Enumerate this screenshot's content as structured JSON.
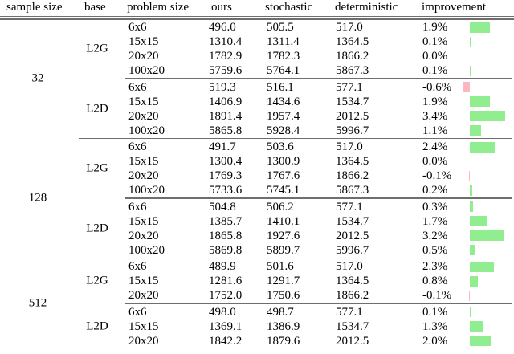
{
  "table": {
    "columns": [
      "sample size",
      "base",
      "problem size",
      "ours",
      "stochastic",
      "deterministic",
      "improvement"
    ],
    "colors": {
      "positive_bar": "#90ee90",
      "negative_bar": "#ffb6c1",
      "rule": "#6e6e6e"
    },
    "sample_groups": [
      {
        "sample_size": "32",
        "base_groups": [
          {
            "base": "L2G",
            "rows": [
              {
                "problem_size": "6x6",
                "ours": "496.0",
                "stochastic": "505.5",
                "deterministic": "517.0",
                "improvement": "1.9%",
                "improvement_value": 1.9
              },
              {
                "problem_size": "15x15",
                "ours": "1310.4",
                "stochastic": "1311.4",
                "deterministic": "1364.5",
                "improvement": "0.1%",
                "improvement_value": 0.1
              },
              {
                "problem_size": "20x20",
                "ours": "1782.9",
                "stochastic": "1782.3",
                "deterministic": "1866.2",
                "improvement": "0.0%",
                "improvement_value": 0.0
              },
              {
                "problem_size": "100x20",
                "ours": "5759.6",
                "stochastic": "5764.1",
                "deterministic": "5867.3",
                "improvement": "0.1%",
                "improvement_value": 0.1
              }
            ]
          },
          {
            "base": "L2D",
            "rows": [
              {
                "problem_size": "6x6",
                "ours": "519.3",
                "stochastic": "516.1",
                "deterministic": "577.1",
                "improvement": "-0.6%",
                "improvement_value": -0.6
              },
              {
                "problem_size": "15x15",
                "ours": "1406.9",
                "stochastic": "1434.6",
                "deterministic": "1534.7",
                "improvement": "1.9%",
                "improvement_value": 1.9
              },
              {
                "problem_size": "20x20",
                "ours": "1891.4",
                "stochastic": "1957.4",
                "deterministic": "2012.5",
                "improvement": "3.4%",
                "improvement_value": 3.4
              },
              {
                "problem_size": "100x20",
                "ours": "5865.8",
                "stochastic": "5928.4",
                "deterministic": "5996.7",
                "improvement": "1.1%",
                "improvement_value": 1.1
              }
            ]
          }
        ]
      },
      {
        "sample_size": "128",
        "base_groups": [
          {
            "base": "L2G",
            "rows": [
              {
                "problem_size": "6x6",
                "ours": "491.7",
                "stochastic": "503.6",
                "deterministic": "517.0",
                "improvement": "2.4%",
                "improvement_value": 2.4
              },
              {
                "problem_size": "15x15",
                "ours": "1300.4",
                "stochastic": "1300.9",
                "deterministic": "1364.5",
                "improvement": "0.0%",
                "improvement_value": 0.0
              },
              {
                "problem_size": "20x20",
                "ours": "1769.3",
                "stochastic": "1767.6",
                "deterministic": "1866.2",
                "improvement": "-0.1%",
                "improvement_value": -0.1
              },
              {
                "problem_size": "100x20",
                "ours": "5733.6",
                "stochastic": "5745.1",
                "deterministic": "5867.3",
                "improvement": "0.2%",
                "improvement_value": 0.2
              }
            ]
          },
          {
            "base": "L2D",
            "rows": [
              {
                "problem_size": "6x6",
                "ours": "504.8",
                "stochastic": "506.2",
                "deterministic": "577.1",
                "improvement": "0.3%",
                "improvement_value": 0.3
              },
              {
                "problem_size": "15x15",
                "ours": "1385.7",
                "stochastic": "1410.1",
                "deterministic": "1534.7",
                "improvement": "1.7%",
                "improvement_value": 1.7
              },
              {
                "problem_size": "20x20",
                "ours": "1865.8",
                "stochastic": "1927.6",
                "deterministic": "2012.5",
                "improvement": "3.2%",
                "improvement_value": 3.2
              },
              {
                "problem_size": "100x20",
                "ours": "5869.8",
                "stochastic": "5899.7",
                "deterministic": "5996.7",
                "improvement": "0.5%",
                "improvement_value": 0.5
              }
            ]
          }
        ]
      },
      {
        "sample_size": "512",
        "base_groups": [
          {
            "base": "L2G",
            "rows": [
              {
                "problem_size": "6x6",
                "ours": "489.9",
                "stochastic": "501.6",
                "deterministic": "517.0",
                "improvement": "2.3%",
                "improvement_value": 2.3
              },
              {
                "problem_size": "15x15",
                "ours": "1281.6",
                "stochastic": "1291.7",
                "deterministic": "1364.5",
                "improvement": "0.8%",
                "improvement_value": 0.8
              },
              {
                "problem_size": "20x20",
                "ours": "1752.0",
                "stochastic": "1750.6",
                "deterministic": "1866.2",
                "improvement": "-0.1%",
                "improvement_value": -0.1
              }
            ]
          },
          {
            "base": "L2D",
            "rows": [
              {
                "problem_size": "6x6",
                "ours": "498.0",
                "stochastic": "498.7",
                "deterministic": "577.1",
                "improvement": "0.1%",
                "improvement_value": 0.1
              },
              {
                "problem_size": "15x15",
                "ours": "1369.1",
                "stochastic": "1386.9",
                "deterministic": "1534.7",
                "improvement": "1.3%",
                "improvement_value": 1.3
              },
              {
                "problem_size": "20x20",
                "ours": "1842.2",
                "stochastic": "1879.6",
                "deterministic": "2012.5",
                "improvement": "2.0%",
                "improvement_value": 2.0
              }
            ]
          }
        ]
      }
    ]
  }
}
